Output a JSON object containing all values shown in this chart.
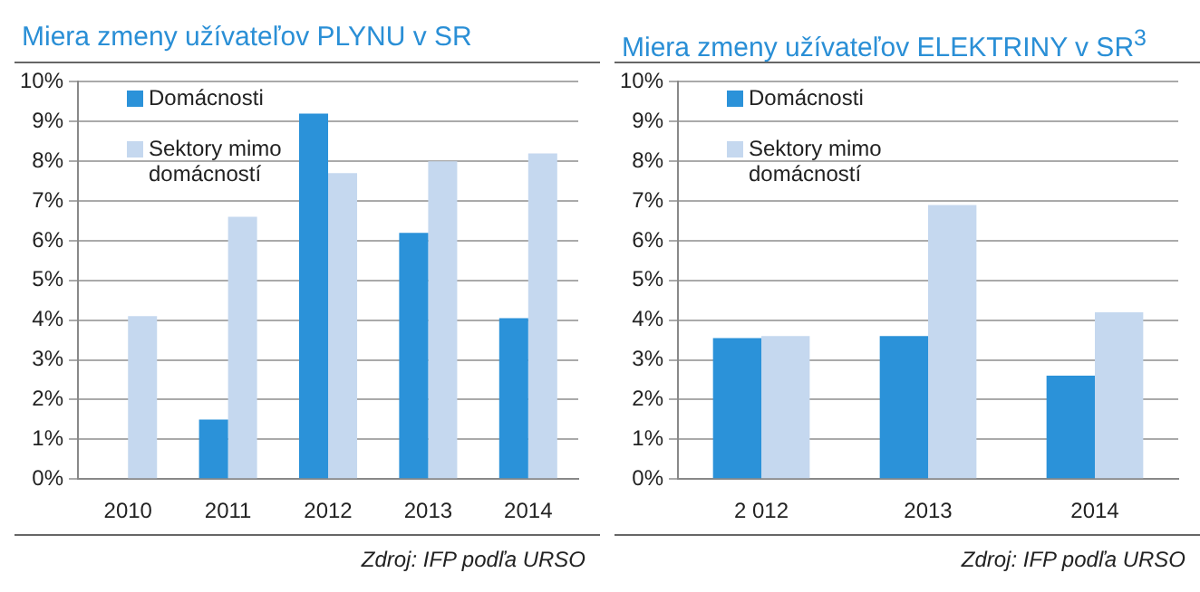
{
  "chart_data": [
    {
      "type": "bar",
      "title": "Miera zmeny užívateľov PLYNU v SR",
      "categories": [
        "2010",
        "2011",
        "2012",
        "2013",
        "2014"
      ],
      "series": [
        {
          "name": "Domácnosti",
          "color": "#2b92d9",
          "values": [
            null,
            1.5,
            9.2,
            6.2,
            4.05
          ]
        },
        {
          "name": "Sektory mimo domácností",
          "color": "#c5d8ef",
          "values": [
            4.1,
            6.6,
            7.7,
            8.0,
            8.2
          ]
        }
      ],
      "ylim": [
        0,
        10
      ],
      "yticks": [
        {
          "value": 0,
          "label": "0%"
        },
        {
          "value": 1,
          "label": "1%"
        },
        {
          "value": 2,
          "label": "2%"
        },
        {
          "value": 3,
          "label": "3%"
        },
        {
          "value": 4,
          "label": "4%"
        },
        {
          "value": 5,
          "label": "5%"
        },
        {
          "value": 6,
          "label": "6%"
        },
        {
          "value": 7,
          "label": "7%"
        },
        {
          "value": 8,
          "label": "8%"
        },
        {
          "value": 9,
          "label": "9%"
        },
        {
          "value": 10,
          "label": "10%"
        }
      ],
      "grid": "y",
      "legend": "top left",
      "annotations": [
        "Zdroj: IFP podľa URSO"
      ]
    },
    {
      "type": "bar",
      "title": "Miera zmeny užívateľov ELEKTRINY v SR$^{3}$",
      "categories": [
        "2 012",
        "2013",
        "2014"
      ],
      "series": [
        {
          "name": "Domácnosti",
          "color": "#2b92d9",
          "values": [
            3.55,
            3.6,
            2.6
          ]
        },
        {
          "name": "Sektory mimo domácností",
          "color": "#c5d8ef",
          "values": [
            3.6,
            6.9,
            4.2
          ]
        }
      ],
      "ylim": [
        0,
        10
      ],
      "yticks": [
        {
          "value": 0,
          "label": "0%"
        },
        {
          "value": 1,
          "label": "1%"
        },
        {
          "value": 2,
          "label": "2%"
        },
        {
          "value": 3,
          "label": "3%"
        },
        {
          "value": 4,
          "label": "4%"
        },
        {
          "value": 5,
          "label": "5%"
        },
        {
          "value": 6,
          "label": "6%"
        },
        {
          "value": 7,
          "label": "7%"
        },
        {
          "value": 8,
          "label": "8%"
        },
        {
          "value": 9,
          "label": "9%"
        },
        {
          "value": 10,
          "label": "10%"
        }
      ],
      "grid": "y",
      "legend": "top left",
      "annotations": [
        "Zdroj: IFP podľa URSO"
      ]
    }
  ]
}
